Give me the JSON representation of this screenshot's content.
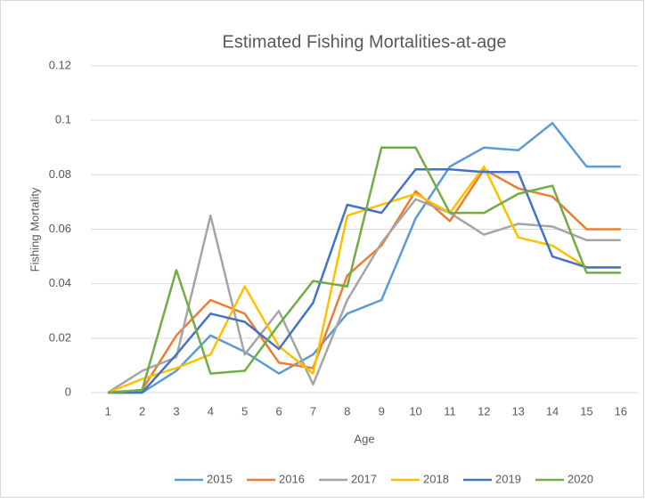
{
  "chart_data": {
    "type": "line",
    "title": "Estimated Fishing Mortalities-at-age",
    "x_label": "Age",
    "y_label": "Fishing Mortality",
    "categories": [
      "1",
      "2",
      "3",
      "4",
      "5",
      "6",
      "7",
      "8",
      "9",
      "10",
      "11",
      "12",
      "13",
      "14",
      "15",
      "16"
    ],
    "series": [
      {
        "name": "2015",
        "color": "#5B9BD5",
        "values": [
          0,
          0,
          0.008,
          0.021,
          0.015,
          0.007,
          0.014,
          0.029,
          0.034,
          0.064,
          0.083,
          0.09,
          0.089,
          0.099,
          0.083,
          0.083
        ]
      },
      {
        "name": "2016",
        "color": "#ED7D31",
        "values": [
          0,
          0.001,
          0.021,
          0.034,
          0.029,
          0.011,
          0.009,
          0.043,
          0.054,
          0.074,
          0.063,
          0.082,
          0.075,
          0.072,
          0.06,
          0.06
        ]
      },
      {
        "name": "2017",
        "color": "#A5A5A5",
        "values": [
          0,
          0.008,
          0.013,
          0.065,
          0.014,
          0.03,
          0.003,
          0.034,
          0.055,
          0.071,
          0.066,
          0.058,
          0.062,
          0.061,
          0.056,
          0.056
        ]
      },
      {
        "name": "2018",
        "color": "#FFC000",
        "values": [
          0,
          0.005,
          0.009,
          0.014,
          0.039,
          0.017,
          0.007,
          0.065,
          0.069,
          0.073,
          0.066,
          0.083,
          0.057,
          0.054,
          0.046,
          0.046
        ]
      },
      {
        "name": "2019",
        "color": "#4472C4",
        "values": [
          0,
          0,
          0.014,
          0.029,
          0.026,
          0.016,
          0.033,
          0.069,
          0.066,
          0.082,
          0.082,
          0.081,
          0.081,
          0.05,
          0.046,
          0.046
        ]
      },
      {
        "name": "2020",
        "color": "#70AD47",
        "values": [
          0,
          0.001,
          0.045,
          0.007,
          0.008,
          0.025,
          0.041,
          0.039,
          0.09,
          0.09,
          0.066,
          0.066,
          0.073,
          0.076,
          0.044,
          0.044
        ]
      }
    ],
    "ylim": [
      0,
      0.12
    ],
    "yticks": [
      0,
      0.02,
      0.04,
      0.06,
      0.08,
      0.1,
      0.12
    ],
    "grid": true,
    "legend": "bottom"
  }
}
